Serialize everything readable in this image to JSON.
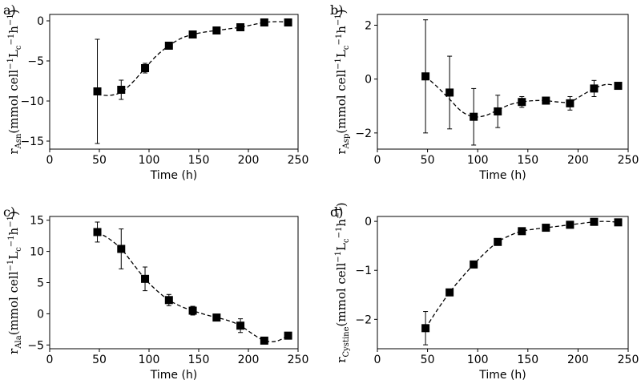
{
  "chart_data": [
    {
      "id": "a",
      "type": "scatter",
      "panel_label": "a)",
      "title": "",
      "xlabel": "Time (h)",
      "ylabel": {
        "var": "r",
        "sub": "Asn",
        "units": "(mmol cell",
        "exp1": "−1",
        "mid": "L",
        "sub2": "c",
        "exp2": "−1",
        "tail": "h",
        "exp3": "−1",
        "close": ")"
      },
      "xlim": [
        0,
        250
      ],
      "ylim": [
        -16,
        0.8
      ],
      "xticks": [
        0,
        50,
        100,
        150,
        200,
        250
      ],
      "yticks": [
        -15,
        -10,
        -5,
        0
      ],
      "xtick_labels": [
        "0",
        "50",
        "100",
        "150",
        "200",
        "250"
      ],
      "ytick_labels": [
        "−15",
        "−10",
        "−5",
        "0"
      ],
      "x": [
        48,
        72,
        96,
        120,
        144,
        168,
        192,
        216,
        240
      ],
      "y": [
        -8.8,
        -8.6,
        -5.9,
        -3.1,
        -1.7,
        -1.2,
        -0.8,
        -0.2,
        -0.2
      ],
      "yerr": [
        6.5,
        1.2,
        0.6,
        0.3,
        0.25,
        0.25,
        0.3,
        0.3,
        0.3
      ],
      "fit_x": [
        48,
        60,
        72,
        84,
        96,
        108,
        120,
        132,
        144,
        156,
        168,
        180,
        192,
        204,
        216,
        228,
        240
      ],
      "fit_y": [
        -9.2,
        -9.3,
        -8.9,
        -7.6,
        -5.9,
        -4.3,
        -3.1,
        -2.2,
        -1.7,
        -1.4,
        -1.2,
        -1.0,
        -0.8,
        -0.5,
        -0.2,
        -0.1,
        -0.15
      ]
    },
    {
      "id": "b",
      "type": "scatter",
      "panel_label": "b)",
      "title": "",
      "xlabel": "Time (h)",
      "ylabel": {
        "var": "r",
        "sub": "Asp",
        "units": "(mmol cell",
        "exp1": "−1",
        "mid": "L",
        "sub2": "c",
        "exp2": "−1",
        "tail": "h",
        "exp3": "−1",
        "close": ")"
      },
      "xlim": [
        0,
        250
      ],
      "ylim": [
        -2.6,
        2.4
      ],
      "xticks": [
        0,
        50,
        100,
        150,
        200,
        250
      ],
      "yticks": [
        -2,
        0,
        2
      ],
      "xtick_labels": [
        "0",
        "50",
        "100",
        "150",
        "200",
        "250"
      ],
      "ytick_labels": [
        "−2",
        "0",
        "2"
      ],
      "x": [
        48,
        72,
        96,
        120,
        144,
        168,
        192,
        216,
        240
      ],
      "y": [
        0.1,
        -0.5,
        -1.4,
        -1.2,
        -0.85,
        -0.8,
        -0.9,
        -0.35,
        -0.25
      ],
      "yerr": [
        2.1,
        1.35,
        1.05,
        0.6,
        0.2,
        0.12,
        0.25,
        0.3,
        0.05
      ],
      "fit_x": [
        48,
        60,
        72,
        84,
        96,
        108,
        120,
        132,
        144,
        156,
        168,
        180,
        192,
        204,
        216,
        228,
        240
      ],
      "fit_y": [
        0.1,
        -0.3,
        -0.75,
        -1.2,
        -1.4,
        -1.35,
        -1.15,
        -0.95,
        -0.85,
        -0.8,
        -0.8,
        -0.85,
        -0.85,
        -0.6,
        -0.35,
        -0.2,
        -0.25
      ]
    },
    {
      "id": "c",
      "type": "scatter",
      "panel_label": "c)",
      "title": "",
      "xlabel": "Time (h)",
      "ylabel": {
        "var": "r",
        "sub": "Ala",
        "units": "(mmol cell",
        "exp1": "−1",
        "mid": "L",
        "sub2": "c",
        "exp2": "−1",
        "tail": "h",
        "exp3": "−1",
        "close": ")"
      },
      "xlim": [
        0,
        250
      ],
      "ylim": [
        -5.6,
        15.6
      ],
      "xticks": [
        0,
        50,
        100,
        150,
        200,
        250
      ],
      "yticks": [
        -5,
        0,
        5,
        10,
        15
      ],
      "xtick_labels": [
        "0",
        "50",
        "100",
        "150",
        "200",
        "250"
      ],
      "ytick_labels": [
        "−5",
        "0",
        "5",
        "10",
        "15"
      ],
      "x": [
        48,
        72,
        96,
        120,
        144,
        168,
        192,
        216,
        240
      ],
      "y": [
        13.1,
        10.4,
        5.6,
        2.2,
        0.5,
        -0.6,
        -1.9,
        -4.3,
        -3.5
      ],
      "yerr": [
        1.6,
        3.2,
        1.9,
        0.9,
        0.7,
        0.3,
        1.1,
        0.3,
        0.4
      ],
      "fit_x": [
        48,
        60,
        72,
        84,
        96,
        108,
        120,
        132,
        144,
        156,
        168,
        180,
        192,
        204,
        216,
        228,
        240
      ],
      "fit_y": [
        13.1,
        12.0,
        10.4,
        8.0,
        5.6,
        3.7,
        2.2,
        1.2,
        0.5,
        -0.1,
        -0.6,
        -1.1,
        -1.9,
        -3.2,
        -4.3,
        -4.4,
        -3.5
      ]
    },
    {
      "id": "d",
      "type": "scatter",
      "panel_label": "d)",
      "title": "",
      "xlabel": "Time (h)",
      "ylabel": {
        "var": "r",
        "sub": "Cystine",
        "units": "(mmol cell",
        "exp1": "−1",
        "mid": "L",
        "sub2": "c",
        "exp2": "−1",
        "tail": "h",
        "exp3": "−1",
        "close": ")"
      },
      "xlim": [
        0,
        250
      ],
      "ylim": [
        -2.6,
        0.1
      ],
      "xticks": [
        0,
        50,
        100,
        150,
        200,
        250
      ],
      "yticks": [
        -2,
        -1,
        0
      ],
      "xtick_labels": [
        "0",
        "50",
        "100",
        "150",
        "200",
        "250"
      ],
      "ytick_labels": [
        "−2",
        "−1",
        "0"
      ],
      "x": [
        48,
        72,
        96,
        120,
        144,
        168,
        192,
        216,
        240
      ],
      "y": [
        -2.18,
        -1.45,
        -0.88,
        -0.42,
        -0.2,
        -0.13,
        -0.07,
        -0.01,
        -0.02
      ],
      "yerr": [
        0.34,
        0.03,
        0.07,
        0.03,
        0.02,
        0.02,
        0.02,
        0.01,
        0.01
      ],
      "fit_x": [
        48,
        60,
        72,
        84,
        96,
        108,
        120,
        132,
        144,
        156,
        168,
        180,
        192,
        204,
        216,
        228,
        240
      ],
      "fit_y": [
        -2.18,
        -1.8,
        -1.45,
        -1.15,
        -0.88,
        -0.63,
        -0.42,
        -0.29,
        -0.2,
        -0.16,
        -0.13,
        -0.1,
        -0.07,
        -0.04,
        -0.01,
        0.0,
        -0.02
      ]
    }
  ]
}
